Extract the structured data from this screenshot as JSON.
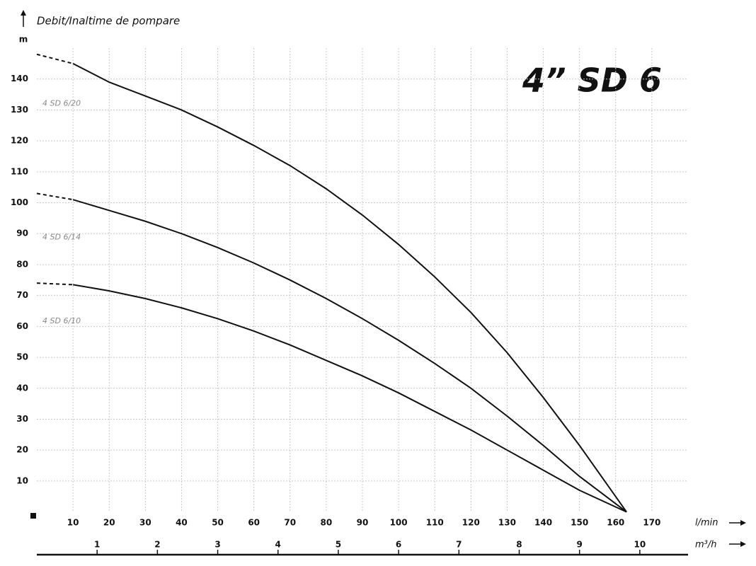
{
  "chart_data": {
    "type": "line",
    "title": "4” SD 6",
    "y_axis_title": "Debit/Inaltime de pompare",
    "y_unit": "m",
    "x_unit": "l/min",
    "x2_unit": "m³/h",
    "xlim": [
      0,
      180
    ],
    "xticks": [
      10,
      20,
      30,
      40,
      50,
      60,
      70,
      80,
      90,
      100,
      110,
      120,
      130,
      140,
      150,
      160,
      170
    ],
    "x2lim": [
      0,
      10.8
    ],
    "x2ticks": [
      1,
      2,
      3,
      4,
      5,
      6,
      7,
      8,
      9,
      10
    ],
    "ylim": [
      0,
      150
    ],
    "yticks": [
      10,
      20,
      30,
      40,
      50,
      60,
      70,
      80,
      90,
      100,
      110,
      120,
      130,
      140
    ],
    "grid": true,
    "dashed_start": true,
    "x": [
      0,
      10,
      20,
      30,
      40,
      50,
      60,
      70,
      80,
      90,
      100,
      110,
      120,
      130,
      140,
      150,
      163
    ],
    "series": [
      {
        "name": "4 SD 6/20",
        "color": "#111111",
        "values": [
          148,
          145,
          139,
          134.5,
          130,
          124.5,
          118.5,
          112,
          104.5,
          96,
          86.5,
          76,
          64.5,
          51.5,
          37,
          21.5,
          0
        ]
      },
      {
        "name": "4 SD 6/14",
        "color": "#111111",
        "values": [
          103,
          101,
          97.5,
          94,
          90,
          85.5,
          80.5,
          75,
          69,
          62.5,
          55.5,
          48,
          40,
          31,
          21.5,
          11.5,
          0
        ]
      },
      {
        "name": "4 SD 6/10",
        "color": "#111111",
        "values": [
          74,
          73.5,
          71.5,
          69,
          66,
          62.5,
          58.5,
          54,
          49,
          44,
          38.5,
          32.5,
          26.5,
          20,
          13.5,
          7,
          0
        ]
      }
    ]
  }
}
